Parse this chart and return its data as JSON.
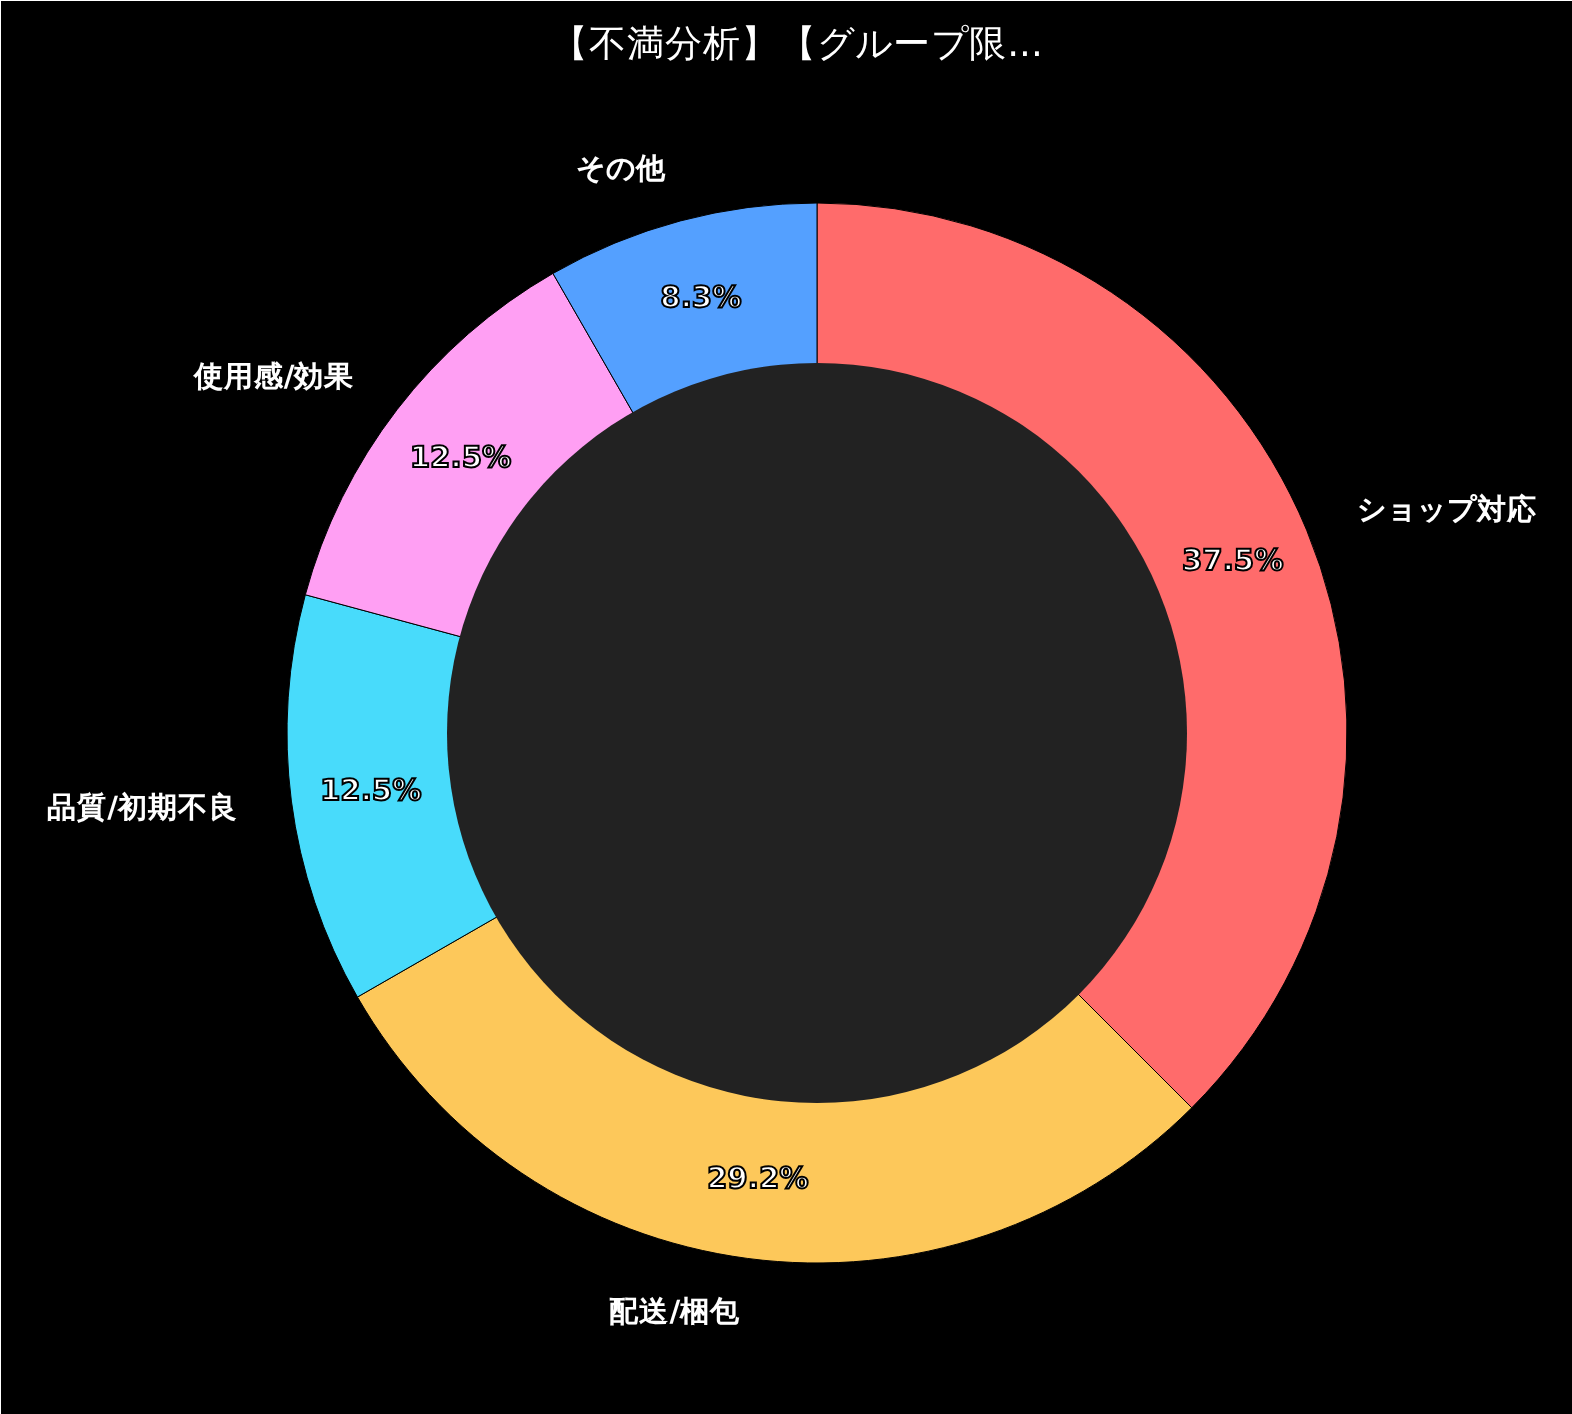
{
  "chart_data": {
    "type": "donut",
    "title": "【不満分析】【グループ限...",
    "categories": [
      "ショップ対応",
      "配送/梱包",
      "品質/初期不良",
      "使用感/効果",
      "その他"
    ],
    "values": [
      37.5,
      29.2,
      12.5,
      12.5,
      8.3
    ],
    "colors": [
      "#ff6b6b",
      "#fdc85a",
      "#48dbfb",
      "#ff9ff3",
      "#54a0ff"
    ],
    "value_labels": [
      "37.5%",
      "29.2%",
      "12.5%",
      "12.5%",
      "8.3%"
    ]
  }
}
